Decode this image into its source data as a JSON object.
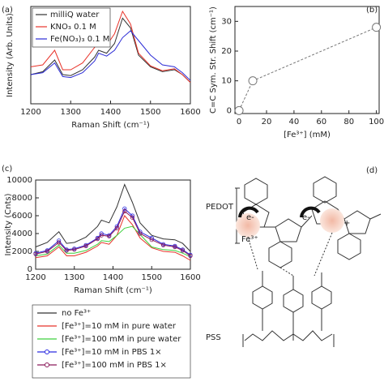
{
  "chart_data": [
    {
      "type": "line",
      "panel_label": "(a)",
      "x_label": "Raman Shift (cm⁻¹)",
      "y_label": "Intensity (Arb. Units)",
      "x": [
        1200,
        1230,
        1260,
        1280,
        1300,
        1330,
        1360,
        1370,
        1390,
        1410,
        1430,
        1450,
        1470,
        1500,
        1530,
        1560,
        1580,
        1600
      ],
      "series": [
        {
          "name": "milliQ water",
          "color": "#333333",
          "values": [
            30,
            33,
            45,
            30,
            29,
            35,
            48,
            55,
            52,
            62,
            88,
            78,
            50,
            38,
            33,
            35,
            30,
            22
          ]
        },
        {
          "name": "KNO₃ 0.1 M",
          "color": "#e8332a",
          "values": [
            38,
            40,
            55,
            35,
            35,
            42,
            58,
            65,
            60,
            72,
            95,
            82,
            52,
            39,
            34,
            36,
            30,
            22
          ]
        },
        {
          "name": "Fe(NO₃)₃ 0.1 M",
          "color": "#2b2bd6",
          "values": [
            30,
            32,
            42,
            28,
            27,
            32,
            44,
            52,
            49,
            55,
            68,
            75,
            65,
            50,
            40,
            38,
            32,
            24
          ]
        }
      ],
      "xlim": [
        1200,
        1600
      ],
      "ylim": [
        0,
        100
      ],
      "xticks": [
        1200,
        1300,
        1400,
        1500,
        1600
      ],
      "legend": "upper left"
    },
    {
      "type": "scatter",
      "panel_label": "(b)",
      "x_label": "[Fe³⁺] (mM)",
      "y_label": "C=C Sym. Str. Shift (cm⁻¹)",
      "x": [
        0,
        10,
        100
      ],
      "values": [
        0,
        10,
        28
      ],
      "color": "#777777",
      "line_style": "dashed",
      "xlim": [
        -3,
        102
      ],
      "ylim": [
        -1,
        35
      ],
      "xticks": [
        0,
        20,
        40,
        60,
        80,
        100
      ],
      "yticks": [
        0,
        10,
        20,
        30
      ]
    },
    {
      "type": "line",
      "panel_label": "(c)",
      "x_label": "Raman Shift (cm⁻¹)",
      "y_label": "Intensity (Cnts)",
      "x": [
        1200,
        1230,
        1260,
        1280,
        1300,
        1330,
        1360,
        1370,
        1390,
        1410,
        1430,
        1450,
        1470,
        1500,
        1530,
        1560,
        1580,
        1600
      ],
      "series": [
        {
          "name": "no Fe³⁺",
          "color": "#333333",
          "values": [
            2500,
            3000,
            4200,
            2900,
            3000,
            3600,
            4800,
            5500,
            5200,
            7000,
            9500,
            7500,
            5200,
            3800,
            3400,
            3300,
            2900,
            2000
          ]
        },
        {
          "name": "[Fe³⁺]=10 mM in pure water",
          "color": "#e8332a",
          "values": [
            1300,
            1500,
            2500,
            1500,
            1500,
            1900,
            2600,
            3000,
            2800,
            3800,
            6000,
            5000,
            3500,
            2400,
            2000,
            1900,
            1500,
            1000
          ]
        },
        {
          "name": "[Fe³⁺]=100 mM in pure water",
          "color": "#3dd13d",
          "values": [
            1500,
            1700,
            2700,
            1800,
            1800,
            2100,
            2800,
            3200,
            3100,
            3800,
            4600,
            4800,
            3900,
            2500,
            2200,
            2100,
            1800,
            1400
          ]
        },
        {
          "name": "[Fe³⁺]=10 mM in PBS 1×",
          "color": "#2a2ae0",
          "marker": "circle",
          "values": [
            1800,
            2100,
            3200,
            2200,
            2300,
            2700,
            3500,
            4000,
            3800,
            4800,
            6800,
            6000,
            4200,
            3500,
            2800,
            2600,
            2200,
            1600
          ]
        },
        {
          "name": "[Fe³⁺]=100 mM in PBS 1×",
          "color": "#8a1a5a",
          "marker": "circle",
          "values": [
            1700,
            2000,
            3000,
            2100,
            2200,
            2600,
            3400,
            3800,
            3700,
            4600,
            6500,
            5800,
            4000,
            3300,
            2700,
            2500,
            2100,
            1500
          ]
        }
      ],
      "xlim": [
        1200,
        1600
      ],
      "ylim": [
        0,
        10000
      ],
      "xticks": [
        1200,
        1300,
        1400,
        1500,
        1600
      ],
      "yticks": [
        0,
        2000,
        4000,
        6000,
        8000,
        10000
      ],
      "legend": "below"
    }
  ],
  "diagram": {
    "panel_label": "(d)",
    "pedot": "PEDOT",
    "pss": "PSS",
    "electron_1": "e-",
    "electron_2": "e-",
    "iron": "Fe³⁺",
    "charge": "+"
  }
}
